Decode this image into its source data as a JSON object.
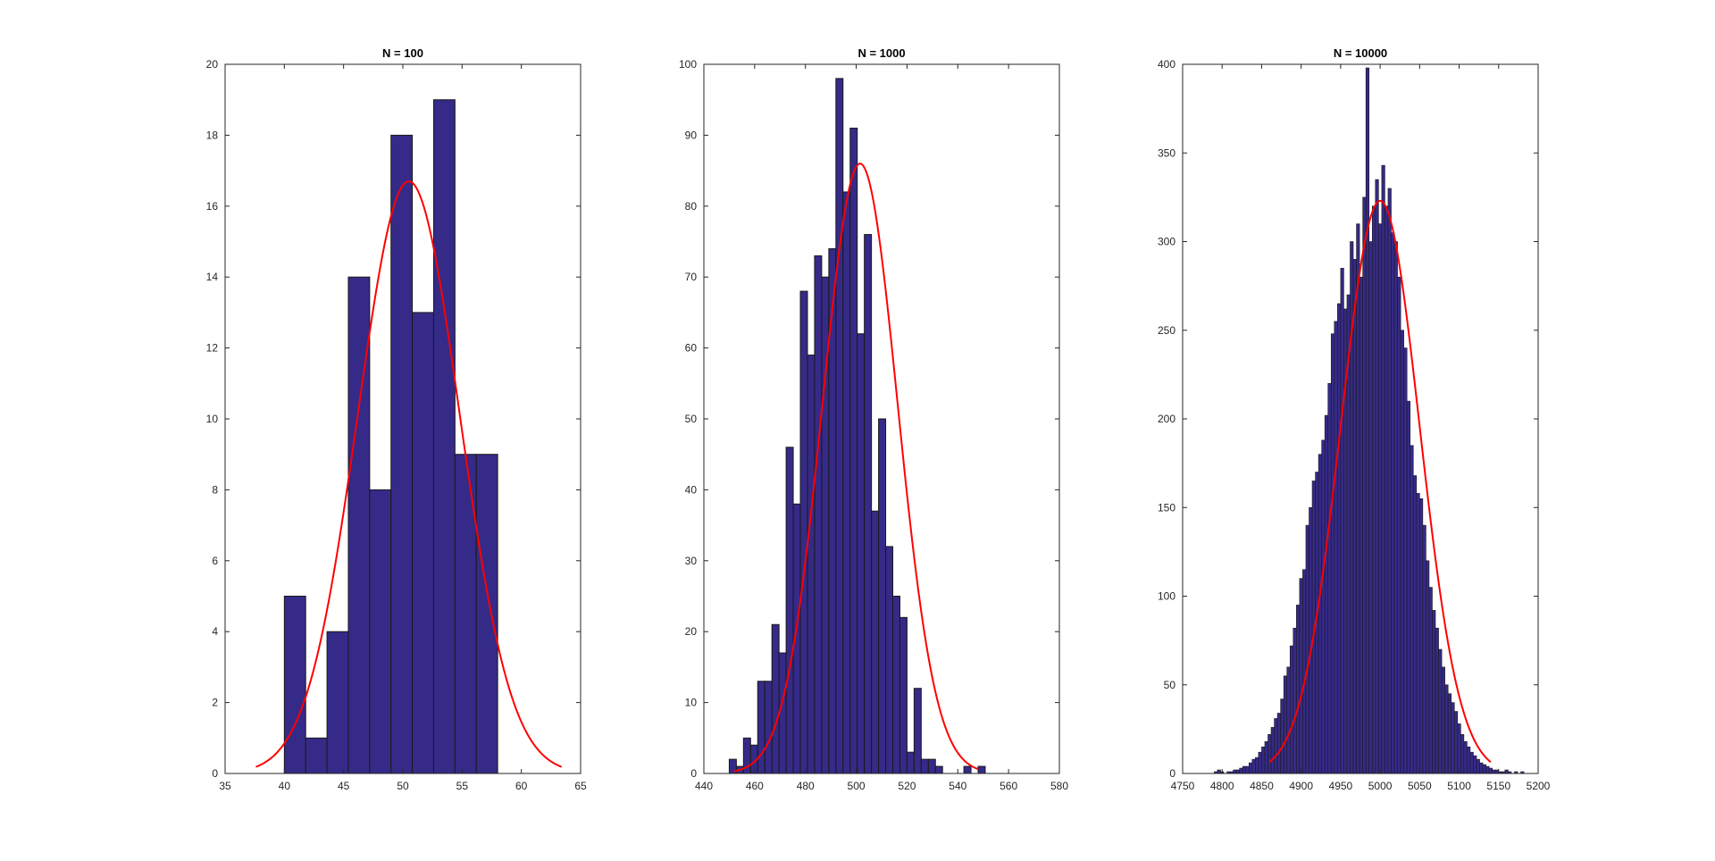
{
  "colors": {
    "bar_fill": "#352a87",
    "bar_edge": "#1a1a1a",
    "fit_line": "#ff0000",
    "axes": "#262626",
    "background": "#ffffff"
  },
  "chart_data": [
    {
      "type": "bar",
      "title": "N = 100",
      "xlabel": "",
      "ylabel": "",
      "xlim": [
        35,
        65
      ],
      "ylim": [
        0,
        20
      ],
      "xticks": [
        35,
        40,
        45,
        50,
        55,
        60,
        65
      ],
      "yticks": [
        0,
        2,
        4,
        6,
        8,
        10,
        12,
        14,
        16,
        18,
        20
      ],
      "xtick_labels": [
        "35",
        "40",
        "45",
        "50",
        "55",
        "60",
        "65"
      ],
      "ytick_labels": [
        "0",
        "2",
        "4",
        "6",
        "8",
        "10",
        "12",
        "14",
        "16",
        "18",
        "20"
      ],
      "bin_edges": [
        40,
        41.8,
        43.6,
        45.4,
        47.2,
        49,
        50.8,
        52.6,
        54.4,
        56.2,
        58
      ],
      "counts": [
        5,
        1,
        4,
        14,
        8,
        18,
        13,
        19,
        9,
        9
      ],
      "fit": {
        "type": "normal",
        "mu": 50.5,
        "sigma": 4.3,
        "peak": 16.7,
        "x_range": [
          37.6,
          63.4
        ]
      },
      "grid": false
    },
    {
      "type": "bar",
      "title": "N = 1000",
      "xlabel": "",
      "ylabel": "",
      "xlim": [
        440,
        580
      ],
      "ylim": [
        0,
        100
      ],
      "xticks": [
        440,
        460,
        480,
        500,
        520,
        540,
        560,
        580
      ],
      "yticks": [
        0,
        10,
        20,
        30,
        40,
        50,
        60,
        70,
        80,
        90,
        100
      ],
      "xtick_labels": [
        "440",
        "460",
        "480",
        "500",
        "520",
        "540",
        "560",
        "580"
      ],
      "ytick_labels": [
        "0",
        "10",
        "20",
        "30",
        "40",
        "50",
        "60",
        "70",
        "80",
        "90",
        "100"
      ],
      "bin_edges": [
        450,
        452.8,
        455.6,
        458.4,
        461.2,
        464,
        466.8,
        469.6,
        472.4,
        475.2,
        478,
        480.8,
        483.6,
        486.4,
        489.2,
        492,
        494.8,
        497.6,
        500.4,
        503.2,
        506,
        508.8,
        511.6,
        514.4,
        517.2,
        520,
        522.8,
        525.6,
        528.4,
        531.2,
        534,
        536.8,
        539.6,
        542.4,
        545.2,
        548,
        550.8,
        553.6,
        556.4,
        559.2,
        562
      ],
      "counts": [
        2,
        1,
        5,
        4,
        13,
        13,
        21,
        17,
        46,
        38,
        68,
        59,
        73,
        70,
        74,
        98,
        82,
        91,
        62,
        76,
        37,
        50,
        32,
        25,
        22,
        3,
        12,
        2,
        2,
        1,
        0,
        0,
        0,
        1,
        0,
        1,
        0,
        0,
        0,
        0
      ],
      "fit": {
        "type": "normal",
        "mu": 501.5,
        "sigma": 14.8,
        "peak": 86,
        "x_range": [
          452,
          548
        ]
      },
      "grid": false
    },
    {
      "type": "bar",
      "title": "N = 10000",
      "xlabel": "",
      "ylabel": "",
      "xlim": [
        4750,
        5200
      ],
      "ylim": [
        0,
        400
      ],
      "xticks": [
        4750,
        4800,
        4850,
        4900,
        4950,
        5000,
        5050,
        5100,
        5150,
        5200
      ],
      "yticks": [
        0,
        50,
        100,
        150,
        200,
        250,
        300,
        350,
        400
      ],
      "xtick_labels": [
        "4750",
        "4800",
        "4850",
        "4900",
        "4950",
        "5000",
        "5050",
        "5100",
        "5150",
        "5200"
      ],
      "ytick_labels": [
        "0",
        "50",
        "100",
        "150",
        "200",
        "250",
        "300",
        "350",
        "400"
      ],
      "bin_edges": [
        4790,
        4794,
        4798,
        4802,
        4806,
        4810,
        4814,
        4818,
        4822,
        4826,
        4830,
        4834,
        4838,
        4842,
        4846,
        4850,
        4854,
        4858,
        4862,
        4866,
        4870,
        4874,
        4878,
        4882,
        4886,
        4890,
        4894,
        4898,
        4902,
        4906,
        4910,
        4914,
        4918,
        4922,
        4926,
        4930,
        4934,
        4938,
        4942,
        4946,
        4950,
        4954,
        4958,
        4962,
        4966,
        4970,
        4974,
        4978,
        4982,
        4986,
        4990,
        4994,
        4998,
        5002,
        5006,
        5010,
        5014,
        5018,
        5022,
        5026,
        5030,
        5034,
        5038,
        5042,
        5046,
        5050,
        5054,
        5058,
        5062,
        5066,
        5070,
        5074,
        5078,
        5082,
        5086,
        5090,
        5094,
        5098,
        5102,
        5106,
        5110,
        5114,
        5118,
        5122,
        5126,
        5130,
        5134,
        5138,
        5142,
        5146,
        5150,
        5154,
        5158,
        5162,
        5166,
        5170,
        5174,
        5178,
        5182,
        5186,
        5190
      ],
      "counts": [
        1,
        2,
        1,
        0,
        1,
        1,
        2,
        2,
        3,
        4,
        4,
        6,
        8,
        9,
        12,
        15,
        18,
        22,
        26,
        31,
        34,
        42,
        55,
        60,
        72,
        82,
        95,
        110,
        115,
        140,
        150,
        165,
        170,
        180,
        188,
        202,
        220,
        248,
        255,
        265,
        285,
        262,
        270,
        300,
        290,
        310,
        280,
        325,
        398,
        300,
        320,
        335,
        310,
        343,
        320,
        330,
        305,
        300,
        280,
        250,
        240,
        210,
        185,
        168,
        158,
        155,
        140,
        120,
        105,
        92,
        82,
        70,
        60,
        50,
        45,
        40,
        35,
        28,
        22,
        18,
        15,
        12,
        10,
        8,
        6,
        5,
        4,
        3,
        2,
        2,
        1,
        1,
        2,
        1,
        0,
        1,
        0,
        1,
        0,
        0
      ],
      "fit": {
        "type": "normal",
        "mu": 5000,
        "sigma": 50,
        "peak": 323,
        "x_range": [
          4860,
          5140
        ]
      },
      "grid": false
    }
  ]
}
